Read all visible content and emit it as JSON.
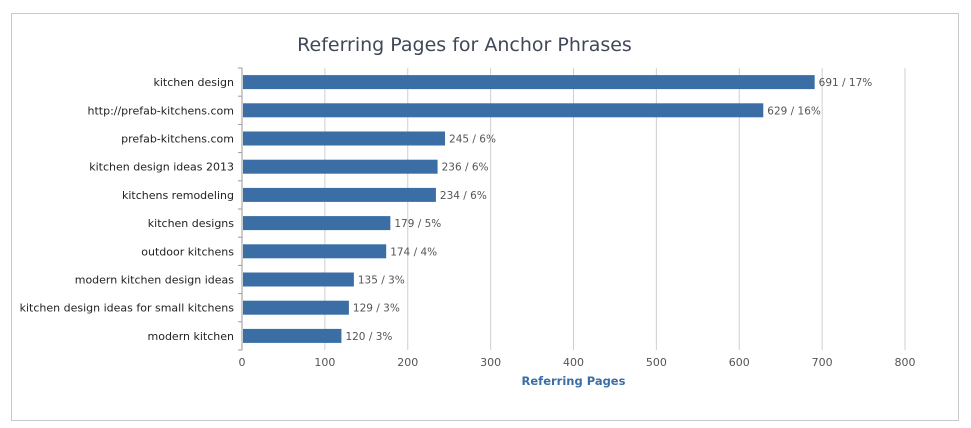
{
  "chart_data": {
    "type": "bar",
    "orientation": "horizontal",
    "title": "Referring Pages for Anchor Phrases",
    "xlabel": "Referring Pages",
    "ylabel": "",
    "categories": [
      "kitchen design",
      "http://prefab-kitchens.com",
      "prefab-kitchens.com",
      "kitchen design ideas 2013",
      "kitchens remodeling",
      "kitchen designs",
      "outdoor kitchens",
      "modern kitchen design ideas",
      "kitchen design ideas for small kitchens",
      "modern kitchen"
    ],
    "values": [
      691,
      629,
      245,
      236,
      234,
      179,
      174,
      135,
      129,
      120
    ],
    "percents": [
      "17%",
      "16%",
      "6%",
      "6%",
      "6%",
      "5%",
      "4%",
      "3%",
      "3%",
      "3%"
    ],
    "data_labels": [
      "691 / 17%",
      "629 / 16%",
      "245 / 6%",
      "236 / 6%",
      "234 / 6%",
      "179 / 5%",
      "174 / 4%",
      "135 / 3%",
      "129 / 3%",
      "120 / 3%"
    ],
    "xlim": [
      0,
      800
    ],
    "xticks": [
      "0",
      "100",
      "200",
      "300",
      "400",
      "500",
      "600",
      "700",
      "800"
    ],
    "grid": true,
    "bar_color": "#3a6ea5"
  }
}
